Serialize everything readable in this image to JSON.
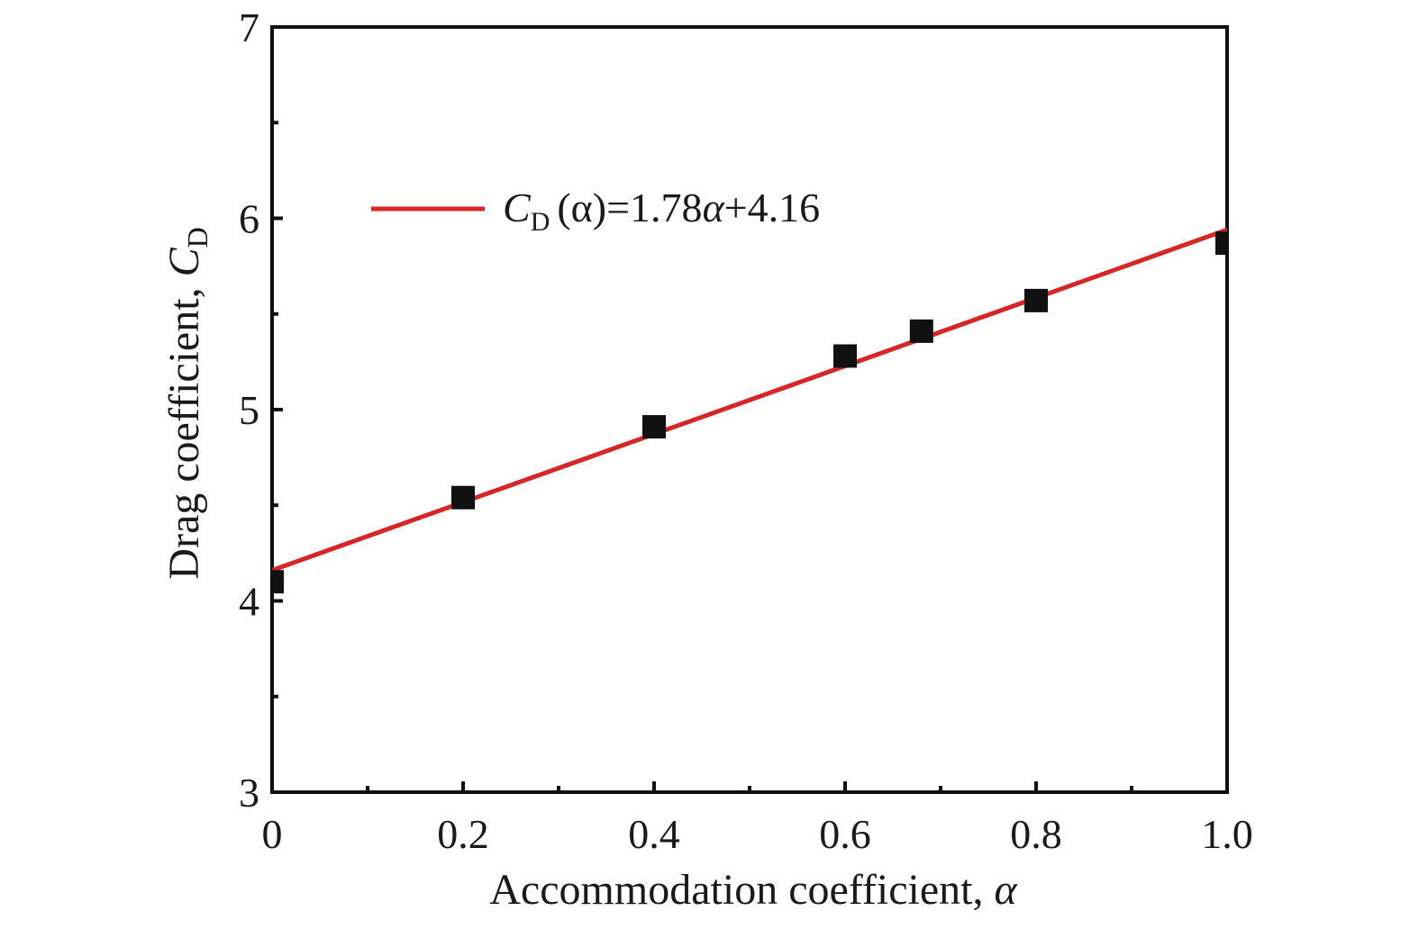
{
  "chart_data": {
    "type": "scatter",
    "xlabel": {
      "text": "Accommodation coefficient, ",
      "symbol": "α"
    },
    "ylabel": {
      "text": "Drag coefficient, ",
      "symbol": "C",
      "subscript": "D"
    },
    "xlim": [
      0,
      1.0
    ],
    "ylim": [
      3,
      7
    ],
    "xticks": [
      0,
      0.2,
      0.4,
      0.6,
      0.8,
      1.0
    ],
    "xtick_labels": [
      "0",
      "0.2",
      "0.4",
      "0.6",
      "0.8",
      "1.0"
    ],
    "x_minor_ticks": [
      0.1,
      0.3,
      0.5,
      0.7,
      0.9
    ],
    "yticks": [
      3,
      4,
      5,
      6,
      7
    ],
    "ytick_labels": [
      "3",
      "4",
      "5",
      "6",
      "7"
    ],
    "y_minor_ticks": [
      3.5,
      4.5,
      5.5,
      6.5
    ],
    "grid": false,
    "legend_position": "upper-left",
    "series": [
      {
        "kind": "points",
        "marker": "square",
        "color": "#111111",
        "x": [
          0,
          0.2,
          0.4,
          0.6,
          0.68,
          0.8,
          1.0
        ],
        "y": [
          4.1,
          4.54,
          4.91,
          5.28,
          5.41,
          5.57,
          5.87
        ]
      },
      {
        "kind": "fit-line",
        "color": "#d62728",
        "slope": 1.78,
        "intercept": 4.16,
        "legend": {
          "symbol": "C",
          "subscript": "D",
          "args": "(α)",
          "rhs_1": "=1.78",
          "rhs_var": "α",
          "rhs_2": "+4.16"
        }
      }
    ]
  }
}
